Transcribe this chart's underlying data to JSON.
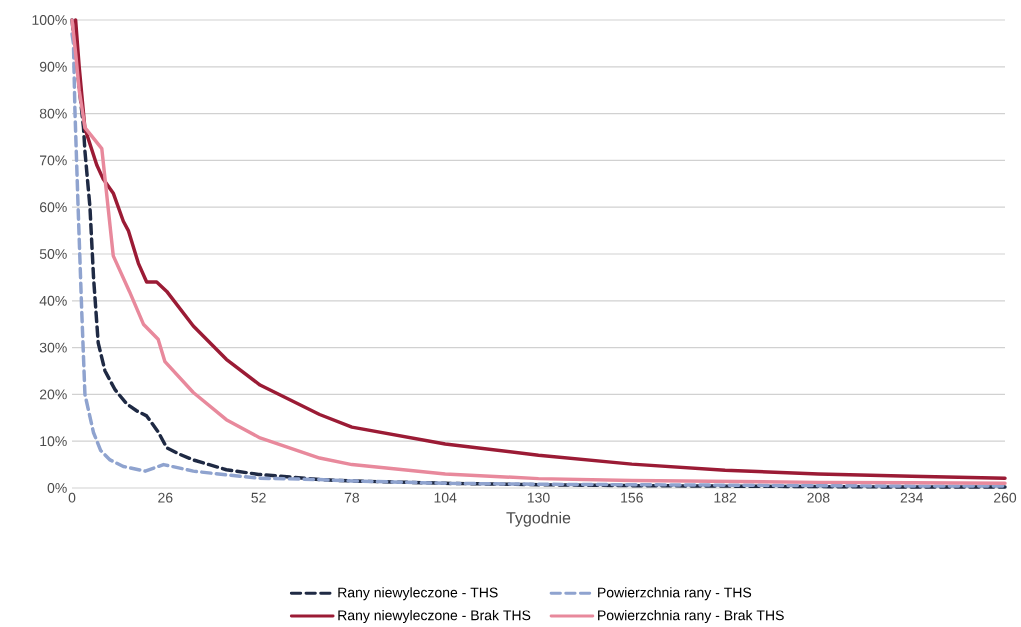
{
  "chart_data": {
    "type": "line",
    "xlabel": "Tygodnie",
    "xlim": [
      0,
      260
    ],
    "xticks": [
      0,
      26,
      52,
      78,
      104,
      130,
      156,
      182,
      208,
      234,
      260
    ],
    "ylim": [
      0,
      100
    ],
    "yticks": [
      {
        "value": 0,
        "label": "0%"
      },
      {
        "value": 10,
        "label": "10%"
      },
      {
        "value": 20,
        "label": "20%"
      },
      {
        "value": 30,
        "label": "30%"
      },
      {
        "value": 40,
        "label": "40%"
      },
      {
        "value": 50,
        "label": "50%"
      },
      {
        "value": 60,
        "label": "60%"
      },
      {
        "value": 70,
        "label": "70%"
      },
      {
        "value": 80,
        "label": "80%"
      },
      {
        "value": 90,
        "label": "90%"
      },
      {
        "value": 100,
        "label": "100%"
      }
    ],
    "grid": "y",
    "legend": "bottom",
    "marker": "none",
    "series": [
      {
        "name": "Rany niewyleczone - THS",
        "color": "#1f2a44",
        "line_style": "dashed",
        "x": [
          0,
          3.2,
          3.6,
          5,
          6,
          7.3,
          9.2,
          12,
          15.2,
          18,
          20.8,
          24,
          26.4,
          30,
          33.8,
          43,
          52,
          69,
          78,
          104,
          130,
          156,
          182,
          208,
          234,
          260
        ],
        "values": [
          100,
          77,
          72,
          60,
          45,
          31,
          25,
          21,
          18,
          16.5,
          15.4,
          12,
          8.6,
          7.2,
          6,
          3.9,
          2.9,
          1.8,
          1.5,
          1,
          0.7,
          0.5,
          0.4,
          0.3,
          0.2,
          0.2
        ]
      },
      {
        "name": "Powierzchnia rany - THS",
        "color": "#8fa3cf",
        "line_style": "dashed",
        "x": [
          0,
          0.4,
          0.8,
          1.7,
          2.7,
          3.6,
          6,
          8,
          10.6,
          14.3,
          20.4,
          25.5,
          33.8,
          43,
          52,
          69,
          78,
          104,
          130,
          156,
          182,
          208,
          234,
          260
        ],
        "values": [
          97,
          95,
          81,
          60,
          38,
          20,
          11.8,
          8,
          6,
          4.6,
          3.6,
          5,
          3.6,
          2.8,
          2.1,
          1.8,
          1.5,
          1,
          0.8,
          0.7,
          0.6,
          0.5,
          0.4,
          0.4
        ]
      },
      {
        "name": "Rany niewyleczone - Brak THS",
        "color": "#9b1b35",
        "line_style": "solid",
        "x": [
          1,
          2,
          3.6,
          6.9,
          8.7,
          11.5,
          14.3,
          15.7,
          18.5,
          20.8,
          23.6,
          26.4,
          33.8,
          43,
          52.4,
          69,
          78,
          104,
          130,
          156,
          182,
          208,
          234,
          260
        ],
        "values": [
          100,
          90,
          76.8,
          69,
          66,
          63,
          57,
          55,
          48,
          44,
          44,
          42,
          34.6,
          27.5,
          22,
          15.7,
          13,
          9.4,
          7,
          5.1,
          3.8,
          3,
          2.5,
          2.1
        ]
      },
      {
        "name": "Powierzchnia rany - Brak THS",
        "color": "#e8899c",
        "line_style": "solid",
        "x": [
          0,
          1,
          2,
          3.6,
          8.3,
          11.5,
          16,
          19.9,
          24,
          25.9,
          33.8,
          43,
          52.4,
          69,
          78,
          104,
          130,
          156,
          182,
          208,
          234,
          260
        ],
        "values": [
          100,
          93,
          85,
          77,
          72.5,
          49.6,
          42,
          35,
          31.8,
          27,
          20.4,
          14.6,
          10.7,
          6.4,
          5,
          3,
          2,
          1.6,
          1.4,
          1.2,
          1.1,
          1
        ]
      }
    ]
  }
}
